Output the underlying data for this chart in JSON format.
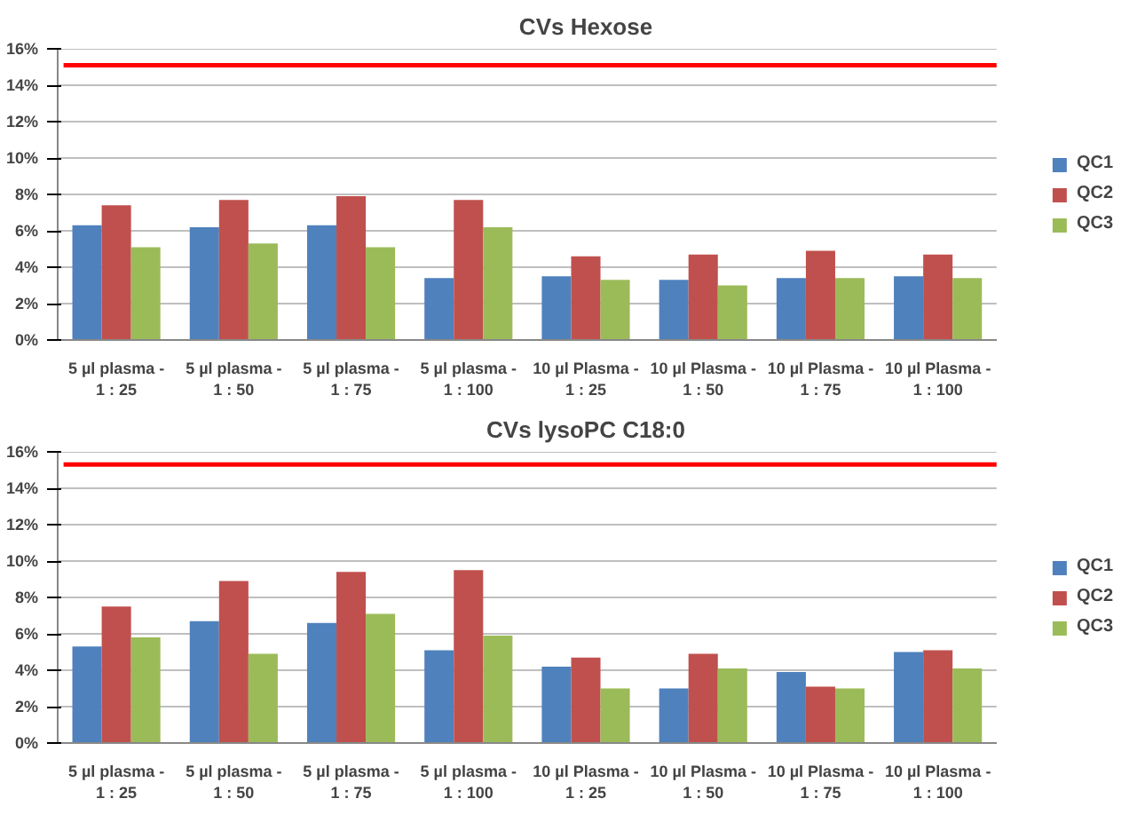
{
  "chart_data": [
    {
      "type": "bar",
      "title": "CVs Hexose",
      "categories": [
        "5 µl plasma -\n1 : 25",
        "5 µl plasma -\n1 : 50",
        "5 µl plasma -\n1 : 75",
        "5 µl plasma -\n1 : 100",
        "10 µl Plasma -\n1 : 25",
        "10 µl Plasma -\n1 : 50",
        "10 µl Plasma -\n1 : 75",
        "10 µl Plasma -\n1 : 100"
      ],
      "series": [
        {
          "name": "QC1",
          "color": "#4f81bd",
          "values": [
            6.3,
            6.2,
            6.3,
            3.4,
            3.5,
            3.3,
            3.4,
            3.5
          ]
        },
        {
          "name": "QC2",
          "color": "#c0504d",
          "values": [
            7.4,
            7.7,
            7.9,
            7.7,
            4.6,
            4.7,
            4.9,
            4.7
          ]
        },
        {
          "name": "QC3",
          "color": "#9bbb59",
          "values": [
            5.1,
            5.3,
            5.1,
            6.2,
            3.3,
            3.0,
            3.4,
            3.4
          ]
        }
      ],
      "ylim": [
        0,
        16
      ],
      "yticks": [
        {
          "value": 0,
          "label": "0%"
        },
        {
          "value": 2,
          "label": "2%"
        },
        {
          "value": 4,
          "label": "4%"
        },
        {
          "value": 6,
          "label": "6%"
        },
        {
          "value": 8,
          "label": "8%"
        },
        {
          "value": 10,
          "label": "10%"
        },
        {
          "value": 12,
          "label": "12%"
        },
        {
          "value": 14,
          "label": "14%"
        },
        {
          "value": 16,
          "label": "16%"
        }
      ],
      "ref_lines": [
        {
          "axis": "y",
          "value": 15.1,
          "color": "#ff0000"
        }
      ],
      "grid": "y",
      "legend": "right"
    },
    {
      "type": "bar",
      "title": "CVs lysoPC C18:0",
      "categories": [
        "5 µl plasma -\n1 : 25",
        "5 µl plasma -\n1 : 50",
        "5 µl plasma -\n1 : 75",
        "5 µl plasma -\n1 : 100",
        "10 µl Plasma -\n1 : 25",
        "10 µl Plasma -\n1 : 50",
        "10 µl Plasma -\n1 : 75",
        "10 µl Plasma -\n1 : 100"
      ],
      "series": [
        {
          "name": "QC1",
          "color": "#4f81bd",
          "values": [
            5.3,
            6.7,
            6.6,
            5.1,
            4.2,
            3.0,
            3.9,
            5.0
          ]
        },
        {
          "name": "QC2",
          "color": "#c0504d",
          "values": [
            7.5,
            8.9,
            9.4,
            9.5,
            4.7,
            4.9,
            3.1,
            5.1
          ]
        },
        {
          "name": "QC3",
          "color": "#9bbb59",
          "values": [
            5.8,
            4.9,
            7.1,
            5.9,
            3.0,
            4.1,
            3.0,
            4.1
          ]
        }
      ],
      "ylim": [
        0,
        16
      ],
      "yticks": [
        {
          "value": 0,
          "label": "0%"
        },
        {
          "value": 2,
          "label": "2%"
        },
        {
          "value": 4,
          "label": "4%"
        },
        {
          "value": 6,
          "label": "6%"
        },
        {
          "value": 8,
          "label": "8%"
        },
        {
          "value": 10,
          "label": "10%"
        },
        {
          "value": 12,
          "label": "12%"
        },
        {
          "value": 14,
          "label": "14%"
        },
        {
          "value": 16,
          "label": "16%"
        }
      ],
      "ref_lines": [
        {
          "axis": "y",
          "value": 15.3,
          "color": "#ff0000"
        }
      ],
      "grid": "y",
      "legend": "right"
    }
  ]
}
